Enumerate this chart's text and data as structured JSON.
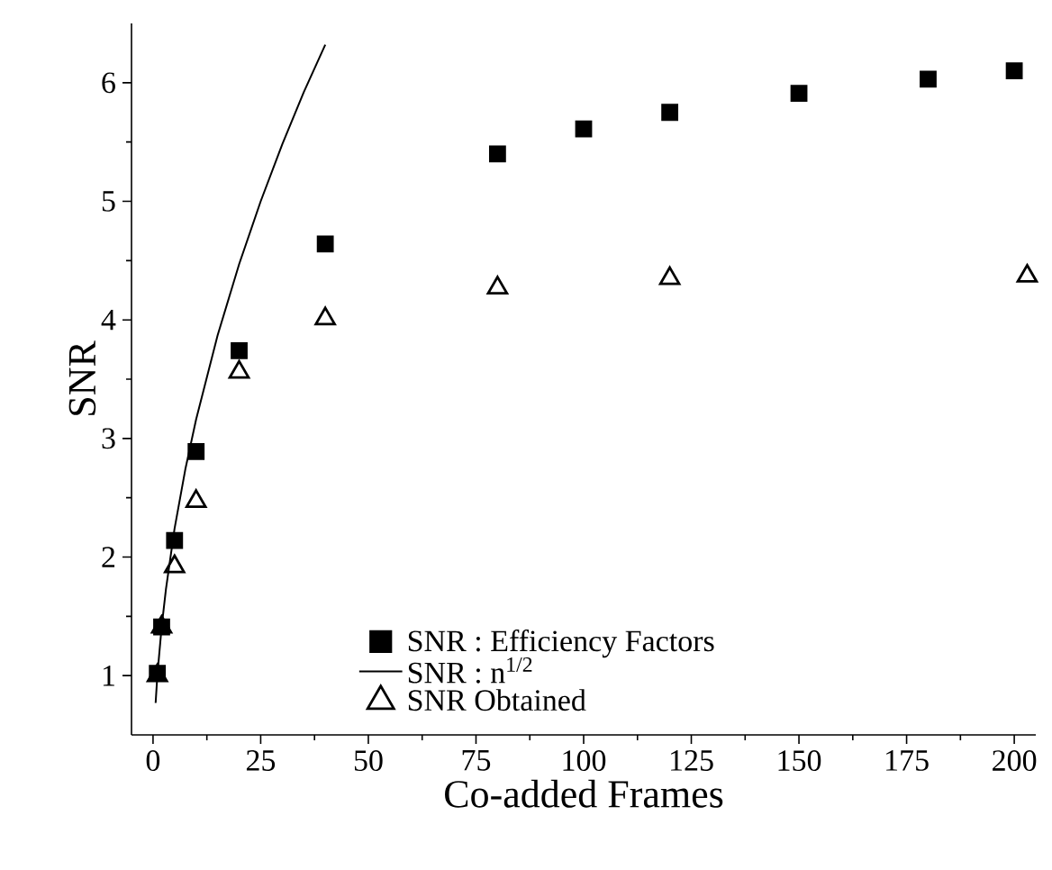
{
  "chart_data": {
    "type": "scatter",
    "xlabel": "Co-added Frames",
    "ylabel": "SNR",
    "xlim": [
      -5,
      205
    ],
    "ylim": [
      0.5,
      6.5
    ],
    "xticks": [
      0,
      25,
      50,
      75,
      100,
      125,
      150,
      175,
      200
    ],
    "yticks": [
      1,
      2,
      3,
      4,
      5,
      6
    ],
    "grid": false,
    "legend": "bottom",
    "series": [
      {
        "name": "SNR : Efficiency Factors",
        "type": "scatter",
        "marker": "square",
        "color": "#000000",
        "x": [
          1,
          2,
          5,
          10,
          20,
          40,
          80,
          100,
          120,
          150,
          180,
          200
        ],
        "values": [
          1.02,
          1.41,
          2.14,
          2.89,
          3.74,
          4.64,
          5.4,
          5.61,
          5.75,
          5.91,
          6.03,
          6.1
        ]
      },
      {
        "name": "SNR : n$^{1/2}$",
        "type": "line",
        "marker": "none",
        "line_style": "solid",
        "color": "#000000",
        "x": [
          0.6,
          1,
          2,
          3,
          5,
          7.5,
          10,
          15,
          20,
          25,
          30,
          35,
          40
        ],
        "values": [
          0.77,
          1.0,
          1.41,
          1.73,
          2.24,
          2.74,
          3.16,
          3.87,
          4.47,
          5.0,
          5.48,
          5.92,
          6.32
        ]
      },
      {
        "name": "SNR Obtained",
        "type": "scatter",
        "marker": "triangle",
        "color": "#000000",
        "x": [
          1,
          2,
          5,
          10,
          20,
          40,
          80,
          120,
          203
        ],
        "values": [
          1.0,
          1.41,
          1.92,
          2.47,
          3.56,
          4.01,
          4.27,
          4.35,
          4.37
        ]
      }
    ]
  }
}
